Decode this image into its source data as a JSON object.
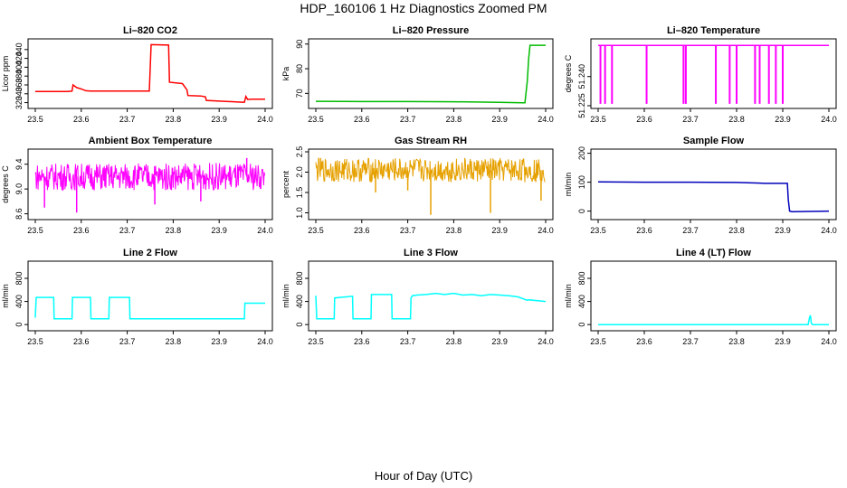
{
  "figure": {
    "title": "HDP_160106  1 Hz Diagnostics Zoomed PM",
    "xlabel": "Hour of Day (UTC)"
  },
  "chart_data": [
    {
      "type": "line",
      "title": "Li–820 CO2",
      "xlabel": "",
      "ylabel": "Licor ppm",
      "color": "#ff0000",
      "xlim": [
        23.5,
        24.0
      ],
      "ylim": [
        313,
        458
      ],
      "xticks": [
        "23.5",
        "23.6",
        "23.7",
        "23.8",
        "23.9",
        "24.0"
      ],
      "yticks": [
        {
          "v": 320,
          "label": "320"
        },
        {
          "v": 340,
          "label": "340"
        },
        {
          "v": 360,
          "label": "360"
        },
        {
          "v": 380,
          "label": "380"
        },
        {
          "v": 400,
          "label": "400"
        },
        {
          "v": 420,
          "label": "420"
        },
        {
          "v": 440,
          "label": "440"
        }
      ],
      "series": [
        {
          "x": [
            23.5,
            23.57,
            23.58,
            23.582,
            23.59,
            23.6,
            23.61,
            23.62,
            23.66,
            23.74,
            23.748,
            23.752,
            23.79,
            23.792,
            23.82,
            23.83,
            23.832,
            23.86,
            23.87,
            23.872,
            23.95,
            23.955,
            23.958,
            23.962,
            23.97,
            24.0
          ],
          "y": [
            345,
            345,
            346,
            360,
            354,
            351,
            347,
            346,
            346,
            346,
            346,
            451,
            450,
            366,
            363,
            349,
            336,
            335,
            333,
            325,
            321,
            321,
            334,
            327,
            328,
            328
          ]
        }
      ]
    },
    {
      "type": "line",
      "title": "Li–820 Pressure",
      "xlabel": "",
      "ylabel": "kPa",
      "color": "#00bb00",
      "xlim": [
        23.5,
        24.0
      ],
      "ylim": [
        65,
        91
      ],
      "xticks": [
        "23.5",
        "23.6",
        "23.7",
        "23.8",
        "23.9",
        "24.0"
      ],
      "yticks": [
        {
          "v": 70,
          "label": "70"
        },
        {
          "v": 80,
          "label": "80"
        },
        {
          "v": 90,
          "label": "90"
        }
      ],
      "series": [
        {
          "x": [
            23.5,
            23.6,
            23.7,
            23.8,
            23.9,
            23.95,
            23.955,
            23.96,
            23.963,
            23.966,
            24.0
          ],
          "y": [
            66.8,
            66.7,
            66.7,
            66.6,
            66.4,
            66.2,
            66.2,
            75,
            84,
            89.5,
            89.5
          ]
        }
      ]
    },
    {
      "type": "line",
      "title": "Li–820 Temperature",
      "xlabel": "",
      "ylabel": "degrees C",
      "color": "#ff00ff",
      "xlim": [
        23.5,
        24.0
      ],
      "ylim": [
        51.225,
        51.258
      ],
      "xticks": [
        "23.5",
        "23.6",
        "23.7",
        "23.8",
        "23.9",
        "24.0"
      ],
      "yticks": [
        {
          "v": 51.225,
          "label": "51.225"
        },
        {
          "v": 51.24,
          "label": "51.240"
        }
      ],
      "baseline": 51.256,
      "dip_value": 51.226,
      "dips": [
        23.505,
        23.515,
        23.53,
        23.605,
        23.685,
        23.69,
        23.755,
        23.785,
        23.8,
        23.84,
        23.85,
        23.87,
        23.885,
        23.9
      ]
    },
    {
      "type": "line",
      "title": "Ambient Box Temperature",
      "xlabel": "",
      "ylabel": "degrees C",
      "color": "#ff00ff",
      "xlim": [
        23.5,
        24.0
      ],
      "ylim": [
        8.55,
        9.6
      ],
      "xticks": [
        "23.5",
        "23.6",
        "23.7",
        "23.8",
        "23.9",
        "24.0"
      ],
      "yticks": [
        {
          "v": 8.6,
          "label": "8.6"
        },
        {
          "v": 9.0,
          "label": "9.0"
        },
        {
          "v": 9.4,
          "label": "9.4"
        }
      ],
      "noise": {
        "center": 9.2,
        "amplitude": 0.22
      },
      "spikes": [
        {
          "x": 23.52,
          "y": 8.7
        },
        {
          "x": 23.59,
          "y": 8.62
        },
        {
          "x": 23.76,
          "y": 8.75
        },
        {
          "x": 23.86,
          "y": 8.8
        },
        {
          "x": 23.99,
          "y": 9.0
        },
        {
          "x": 23.96,
          "y": 9.5
        }
      ]
    },
    {
      "type": "line",
      "title": "Gas Stream RH",
      "xlabel": "",
      "ylabel": "percent",
      "color": "#e6a100",
      "xlim": [
        23.5,
        24.0
      ],
      "ylim": [
        0.9,
        2.5
      ],
      "xticks": [
        "23.5",
        "23.6",
        "23.7",
        "23.8",
        "23.9",
        "24.0"
      ],
      "yticks": [
        {
          "v": 1.0,
          "label": "1.0"
        },
        {
          "v": 1.5,
          "label": "1.5"
        },
        {
          "v": 2.0,
          "label": "2.0"
        },
        {
          "v": 2.5,
          "label": "2.5"
        }
      ],
      "noise": {
        "center": 2.05,
        "amplitude": 0.3
      },
      "spikes": [
        {
          "x": 23.75,
          "y": 0.95
        },
        {
          "x": 23.88,
          "y": 1.0
        },
        {
          "x": 23.99,
          "y": 1.3
        },
        {
          "x": 23.7,
          "y": 1.55
        },
        {
          "x": 23.63,
          "y": 1.5
        }
      ]
    },
    {
      "type": "line",
      "title": "Sample Flow",
      "xlabel": "",
      "ylabel": "ml/min",
      "color": "#0000bb",
      "xlim": [
        23.5,
        24.0
      ],
      "ylim": [
        -20,
        205
      ],
      "xticks": [
        "23.5",
        "23.6",
        "23.7",
        "23.8",
        "23.9",
        "24.0"
      ],
      "yticks": [
        {
          "v": 0,
          "label": "0"
        },
        {
          "v": 100,
          "label": "100"
        },
        {
          "v": 200,
          "label": "200"
        }
      ],
      "series": [
        {
          "x": [
            23.5,
            23.6,
            23.7,
            23.8,
            23.85,
            23.86,
            23.91,
            23.912,
            23.915,
            23.92,
            24.0
          ],
          "y": [
            101,
            100,
            100,
            99,
            97,
            96,
            96,
            40,
            0,
            -2,
            0
          ]
        }
      ]
    },
    {
      "type": "line",
      "title": "Line 2 Flow",
      "xlabel": "",
      "ylabel": "ml/min",
      "color": "#00ffff",
      "xlim": [
        23.5,
        24.0
      ],
      "ylim": [
        -60,
        1050
      ],
      "xticks": [
        "23.5",
        "23.6",
        "23.7",
        "23.8",
        "23.9",
        "24.0"
      ],
      "yticks": [
        {
          "v": 0,
          "label": "0"
        },
        {
          "v": 400,
          "label": "400"
        },
        {
          "v": 800,
          "label": "800"
        }
      ],
      "series": [
        {
          "x": [
            23.5,
            23.502,
            23.54,
            23.541,
            23.58,
            23.581,
            23.62,
            23.621,
            23.66,
            23.661,
            23.705,
            23.706,
            23.955,
            23.956,
            24.0
          ],
          "y": [
            120,
            470,
            470,
            100,
            100,
            470,
            470,
            100,
            100,
            470,
            470,
            100,
            100,
            370,
            370
          ]
        }
      ]
    },
    {
      "type": "line",
      "title": "Line 3 Flow",
      "xlabel": "",
      "ylabel": "ml/min",
      "color": "#00ffff",
      "xlim": [
        23.5,
        24.0
      ],
      "ylim": [
        -60,
        1050
      ],
      "xticks": [
        "23.5",
        "23.6",
        "23.7",
        "23.8",
        "23.9",
        "24.0"
      ],
      "yticks": [
        {
          "v": 0,
          "label": "0"
        },
        {
          "v": 400,
          "label": "400"
        },
        {
          "v": 800,
          "label": "800"
        }
      ],
      "series": [
        {
          "x": [
            23.5,
            23.502,
            23.54,
            23.541,
            23.58,
            23.581,
            23.62,
            23.621,
            23.665,
            23.666,
            23.706,
            23.707,
            23.71,
            23.72,
            23.74,
            23.76,
            23.78,
            23.8,
            23.82,
            23.84,
            23.86,
            23.88,
            23.9,
            23.92,
            23.94,
            23.96,
            23.962,
            24.0
          ],
          "y": [
            500,
            100,
            100,
            460,
            490,
            100,
            100,
            520,
            520,
            100,
            100,
            460,
            500,
            510,
            520,
            540,
            520,
            540,
            510,
            520,
            500,
            520,
            510,
            500,
            480,
            420,
            430,
            400
          ]
        }
      ]
    },
    {
      "type": "line",
      "title": "Line 4 (LT) Flow",
      "xlabel": "",
      "ylabel": "ml/min",
      "color": "#00ffff",
      "xlim": [
        23.5,
        24.0
      ],
      "ylim": [
        -60,
        1050
      ],
      "xticks": [
        "23.5",
        "23.6",
        "23.7",
        "23.8",
        "23.9",
        "24.0"
      ],
      "yticks": [
        {
          "v": 0,
          "label": "0"
        },
        {
          "v": 400,
          "label": "400"
        },
        {
          "v": 800,
          "label": "800"
        }
      ],
      "series": [
        {
          "x": [
            23.5,
            23.955,
            23.958,
            23.96,
            23.962,
            23.965,
            24.0
          ],
          "y": [
            0,
            0,
            120,
            160,
            20,
            0,
            0
          ]
        }
      ]
    }
  ]
}
